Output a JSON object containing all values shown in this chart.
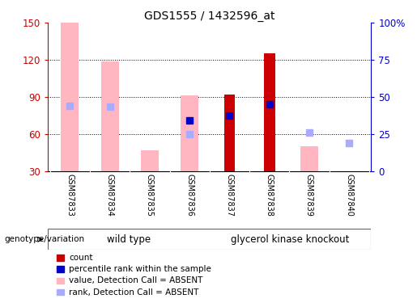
{
  "title": "GDS1555 / 1432596_at",
  "samples": [
    "GSM87833",
    "GSM87834",
    "GSM87835",
    "GSM87836",
    "GSM87837",
    "GSM87838",
    "GSM87839",
    "GSM87840"
  ],
  "groups": [
    {
      "name": "wild type",
      "indices": [
        0,
        1,
        2,
        3
      ]
    },
    {
      "name": "glycerol kinase knockout",
      "indices": [
        4,
        5,
        6,
        7
      ]
    }
  ],
  "ylim_left": [
    30,
    150
  ],
  "ylim_right": [
    0,
    100
  ],
  "yticks_left": [
    30,
    60,
    90,
    120,
    150
  ],
  "yticks_right": [
    0,
    25,
    50,
    75,
    100
  ],
  "ytick_labels_right": [
    "0",
    "25",
    "50",
    "75",
    "100%"
  ],
  "bar_bottom": 30,
  "absent_value_bars": [
    150,
    119,
    47,
    91,
    null,
    null,
    50,
    null
  ],
  "absent_rank_dots": [
    83,
    82,
    null,
    60,
    null,
    null,
    61,
    53
  ],
  "count_bars": [
    null,
    null,
    null,
    null,
    92,
    125,
    null,
    null
  ],
  "percentile_rank_dots": [
    null,
    null,
    null,
    71,
    75,
    84,
    null,
    null
  ],
  "absent_value_color": "#FFB6C1",
  "absent_rank_color": "#AAAAFF",
  "count_color": "#CC0000",
  "percentile_color": "#0000CC",
  "left_axis_color": "#CC0000",
  "right_axis_color": "#0000CC",
  "tick_label_area_color": "#d0d0d0",
  "group_label_color": "#98E098",
  "legend_items": [
    {
      "label": "count",
      "color": "#CC0000"
    },
    {
      "label": "percentile rank within the sample",
      "color": "#0000CC"
    },
    {
      "label": "value, Detection Call = ABSENT",
      "color": "#FFB6C1"
    },
    {
      "label": "rank, Detection Call = ABSENT",
      "color": "#AAAAFF"
    }
  ],
  "genotype_label": "genotype/variation",
  "wild_type_label": "wild type",
  "knockout_label": "glycerol kinase knockout",
  "grid_lines": [
    60,
    90,
    120
  ]
}
